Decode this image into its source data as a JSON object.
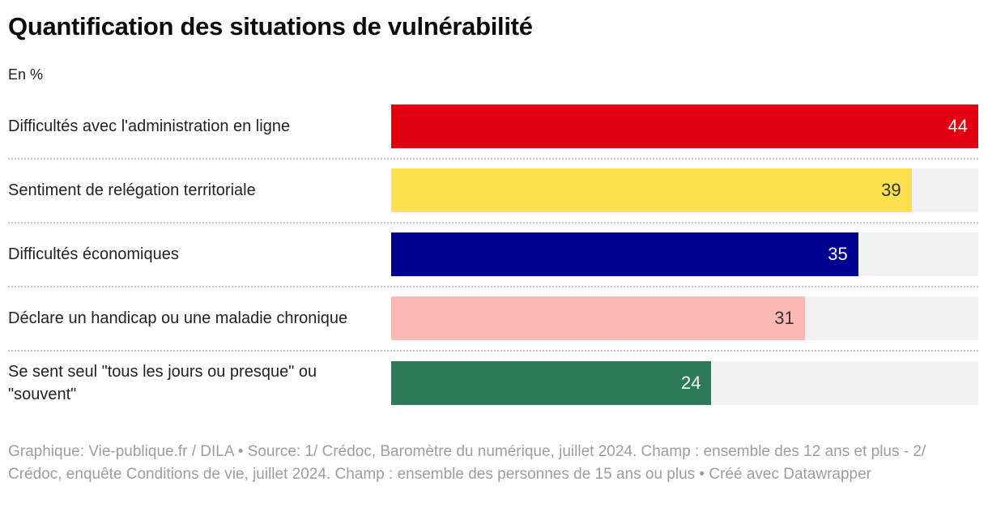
{
  "header": {
    "title": "Quantification des situations de vulnérabilité",
    "subtitle": "En %"
  },
  "chart_data": {
    "type": "bar",
    "orientation": "horizontal",
    "title": "Quantification des situations de vulnérabilité",
    "unit": "En %",
    "xlabel": "",
    "ylabel": "",
    "xlim": [
      0,
      44
    ],
    "grid": false,
    "legend": false,
    "categories": [
      "Difficultés avec l'administration en ligne",
      "Sentiment de relégation territoriale",
      "Difficultés économiques",
      "Déclare un handicap ou une maladie chronique",
      "Se sent seul \"tous les jours ou presque\" ou \"souvent\""
    ],
    "values": [
      44,
      39,
      35,
      31,
      24
    ],
    "bar_colors": [
      "#e1000f",
      "#fbe14e",
      "#000091",
      "#fcb9b4",
      "#2d7a58"
    ],
    "value_label_colors": [
      "#ffffff",
      "#333333",
      "#ffffff",
      "#333333",
      "#ffffff"
    ],
    "track_color": "#f1f1f1"
  },
  "footer": {
    "credit": "Graphique: Vie-publique.fr / DILA • Source: 1/ Crédoc, Baromètre du numérique, juillet 2024. Champ : ensemble des 12 ans et plus - 2/ Crédoc, enquête Conditions de vie, juillet 2024. Champ : ensemble des personnes de 15 ans ou plus • Créé avec Datawrapper"
  }
}
